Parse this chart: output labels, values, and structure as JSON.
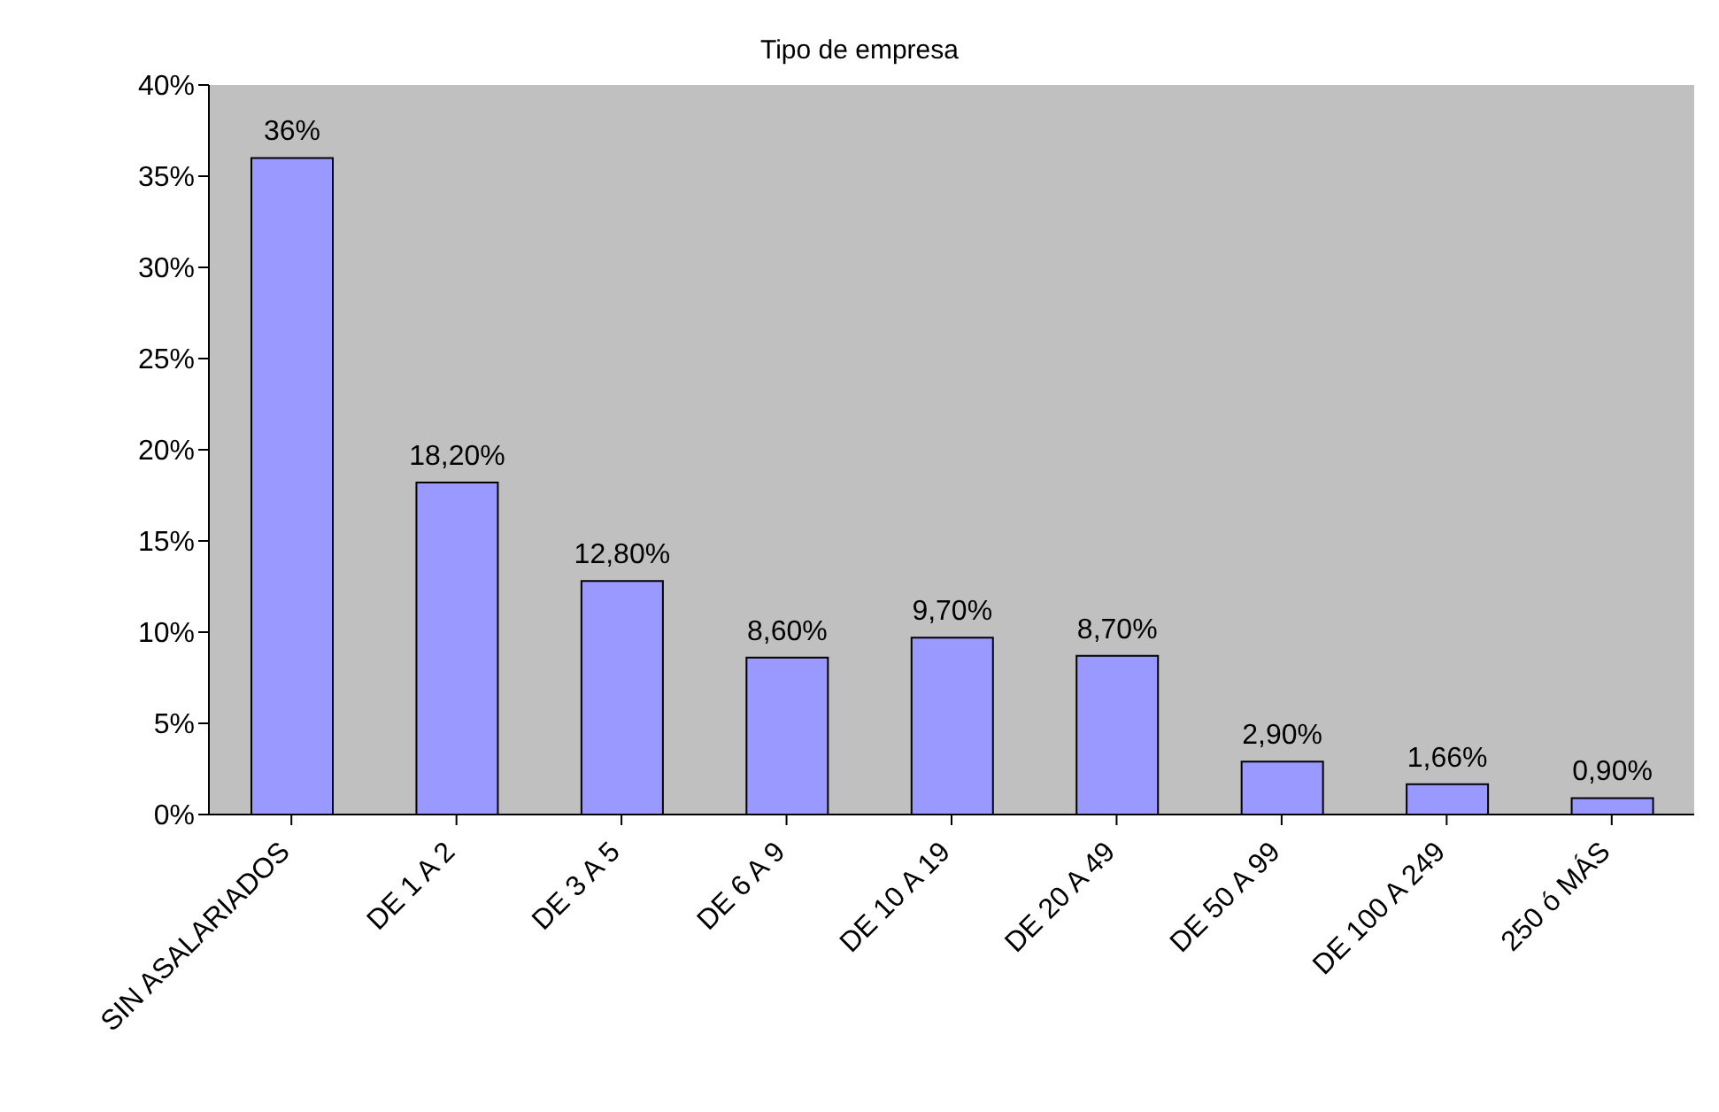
{
  "chart_data": {
    "type": "bar",
    "title": "Tipo de empresa",
    "categories": [
      "SIN ASALARIADOS",
      "DE 1 A 2",
      "DE 3 A 5",
      "DE 6 A 9",
      "DE 10 A 19",
      "DE 20 A 49",
      "DE 50 A 99",
      "DE 100 A 249",
      "250 ó MÁS"
    ],
    "values": [
      36,
      18.2,
      12.8,
      8.6,
      9.7,
      8.7,
      2.9,
      1.66,
      0.9
    ],
    "value_labels": [
      "36%",
      "18,20%",
      "12,80%",
      "8,60%",
      "9,70%",
      "8,70%",
      "2,90%",
      "1,66%",
      "0,90%"
    ],
    "color": "#9999ff",
    "ylim": [
      0,
      40
    ],
    "yticks": [
      {
        "value": 0,
        "label": "0%"
      },
      {
        "value": 5,
        "label": "5%"
      },
      {
        "value": 10,
        "label": "10%"
      },
      {
        "value": 15,
        "label": "15%"
      },
      {
        "value": 20,
        "label": "20%"
      },
      {
        "value": 25,
        "label": "25%"
      },
      {
        "value": 30,
        "label": "30%"
      },
      {
        "value": 35,
        "label": "35%"
      },
      {
        "value": 40,
        "label": "40%"
      }
    ],
    "grid": false,
    "legend": false
  }
}
